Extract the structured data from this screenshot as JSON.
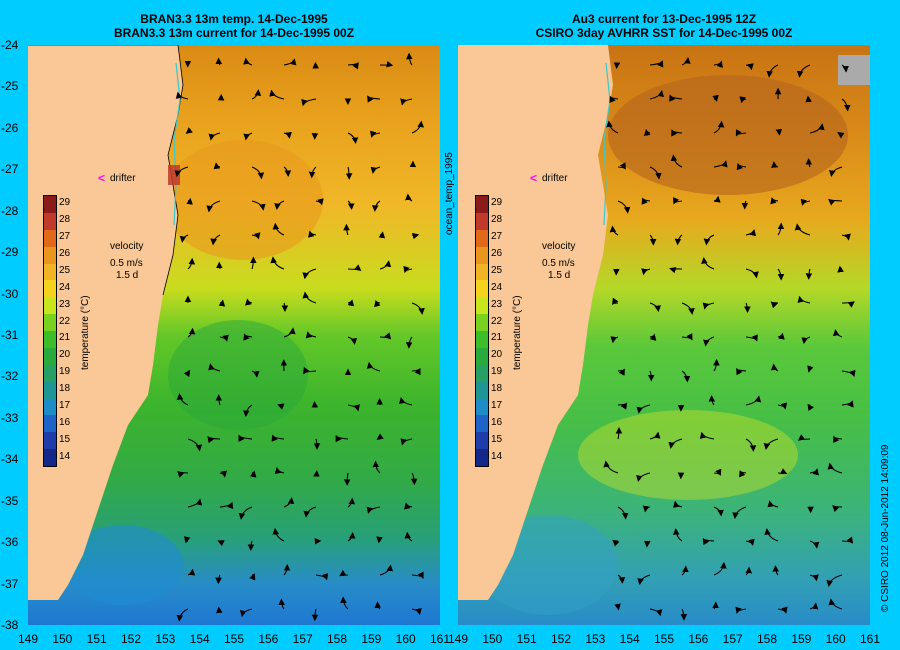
{
  "left_panel": {
    "title_line1": "BRAN3.3 13m temp. 14-Dec-1995",
    "title_line2": "BRAN3.3 13m current for 14-Dec-1995 00Z"
  },
  "right_panel": {
    "title_line1": "Au3 current for 13-Dec-1995 12Z",
    "title_line2": "CSIRO 3day AVHRR SST for 14-Dec-1995 00Z"
  },
  "y_axis_labels": [
    "-24",
    "-25",
    "-26",
    "-27",
    "-28",
    "-29",
    "-30",
    "-31",
    "-32",
    "-33",
    "-34",
    "-35",
    "-36",
    "-37",
    "-38"
  ],
  "x_axis_labels": [
    "149",
    "150",
    "151",
    "152",
    "153",
    "154",
    "155",
    "156",
    "157",
    "158",
    "159",
    "160",
    "161"
  ],
  "colorbar": {
    "labels": [
      "29",
      "28",
      "27",
      "26",
      "25",
      "24",
      "23",
      "22",
      "21",
      "20",
      "19",
      "18",
      "17",
      "16",
      "15",
      "14"
    ],
    "colors": [
      "#8b1a1a",
      "#c0392b",
      "#e06a1a",
      "#e8961e",
      "#f0b424",
      "#f5d21e",
      "#c8e61e",
      "#78d21e",
      "#3cbe28",
      "#28aa3c",
      "#28a064",
      "#1e9696",
      "#1e8cc8",
      "#1e64c8",
      "#1e3caa",
      "#14288c"
    ],
    "title": "temperature (°C)"
  },
  "legend": {
    "drifter_label": "drifter",
    "velocity_label": "velocity",
    "speed_label": "0.5 m/s",
    "time_label": "1.5 d"
  },
  "side_label": "ocean_temp_1995",
  "credit": "© CSIRO 2012  08-Jun-2012 14:09:09"
}
